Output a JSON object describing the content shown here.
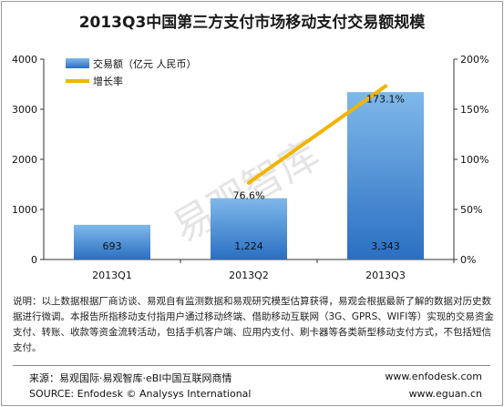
{
  "title": "2013Q3中国第三方支付市场移动支付交易额规模",
  "watermark": "易观智库",
  "note": "说明：以上数据根据厂商访谈、易观自有监测数据和易观研究模型估算获得，易观会根据最新了解的数据对历史数据进行微调。本报告所指移动支付指用户通过移动终端、借助移动互联网（3G、GPRS、WIFI等）实现的交易资金支付、转账、收款等资金流转活动，包括手机客户端、应用内支付、刷卡器等各类新型移动支付方式，不包括短信支付。",
  "source": {
    "line1_left": "来源：易观国际·易观智库·eBI中国互联网商情",
    "line1_right": "www.enfodesk.com",
    "line2_left": "SOURCE: Enfodesk © Analysys International",
    "line2_right": "www.eguan.cn"
  },
  "colors": {
    "bar_top": "#7fb8ea",
    "bar_bottom": "#2a6fc2",
    "line": "#f2b400",
    "frame": "#9a9a9a"
  },
  "chart_data": {
    "type": "bar",
    "categories": [
      "2013Q1",
      "2013Q2",
      "2013Q3"
    ],
    "series": [
      {
        "name": "交易额（亿元 人民币）",
        "type": "bar",
        "axis": "left",
        "values": [
          693,
          1224,
          3343
        ],
        "labels": [
          "693",
          "1,224",
          "3,343"
        ]
      },
      {
        "name": "增长率",
        "type": "line",
        "axis": "right",
        "values": [
          null,
          76.6,
          173.1
        ],
        "labels": [
          "",
          "76.6%",
          "173.1%"
        ]
      }
    ],
    "y_left": {
      "min": 0,
      "max": 4000,
      "ticks": [
        0,
        1000,
        2000,
        3000,
        4000
      ],
      "tick_labels": [
        "0",
        "1000",
        "2000",
        "3000",
        "4000"
      ]
    },
    "y_right": {
      "min": 0,
      "max": 200,
      "ticks": [
        0,
        50,
        100,
        150,
        200
      ],
      "tick_labels": [
        "0%",
        "50%",
        "100%",
        "150%",
        "200%"
      ]
    },
    "legend_position": "top-left",
    "grid": false
  }
}
